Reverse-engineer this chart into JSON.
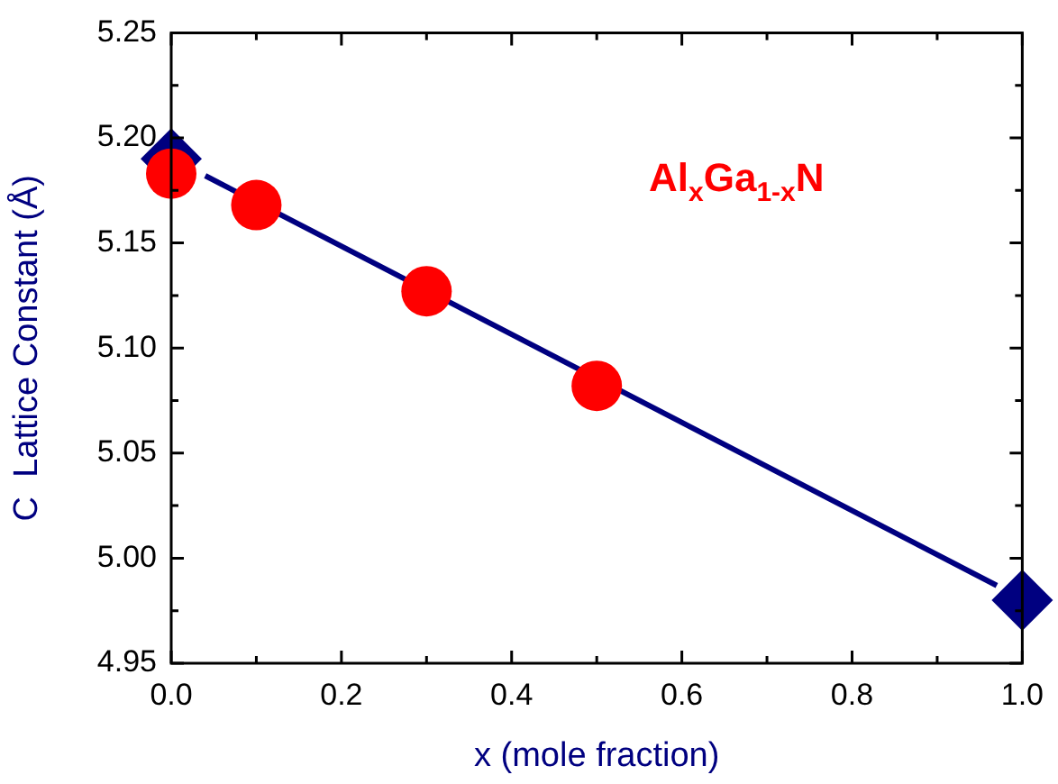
{
  "chart_data": {
    "type": "scatter",
    "xlabel": "x (mole fraction)",
    "ylabel": "C  Lattice Constant (Å)",
    "annotations": [
      "Al$_{x}$Ga$_{1-x}$N"
    ],
    "xlim": [
      0,
      1
    ],
    "xticks": [
      {
        "value": 0,
        "label": "0.0"
      },
      0.2,
      0.4,
      0.6,
      0.8,
      {
        "value": 1,
        "label": "1.0"
      }
    ],
    "ylim": [
      4.95,
      5.25
    ],
    "yticks": [
      4.95,
      {
        "value": 5.0,
        "label": "5.00"
      },
      5.05,
      {
        "value": 5.1,
        "label": "5.10"
      },
      5.15,
      {
        "value": 5.2,
        "label": "5.20"
      },
      5.25
    ],
    "grid": false,
    "legend": false,
    "series": [
      {
        "type": "line",
        "color": "#000080",
        "marker": "none",
        "line_style": "solid",
        "x": [
          0.04,
          0.97
        ],
        "values": [
          5.182,
          4.987
        ]
      },
      {
        "type": "scatter",
        "color": "#000080",
        "marker": "diamond",
        "x": [
          0,
          1
        ],
        "values": [
          5.19,
          4.98
        ]
      },
      {
        "type": "scatter",
        "color": "#ff0000",
        "marker": "circle",
        "x": [
          0,
          0.1,
          0.3,
          0.5
        ],
        "values": [
          5.183,
          5.168,
          5.127,
          5.082
        ]
      }
    ]
  }
}
